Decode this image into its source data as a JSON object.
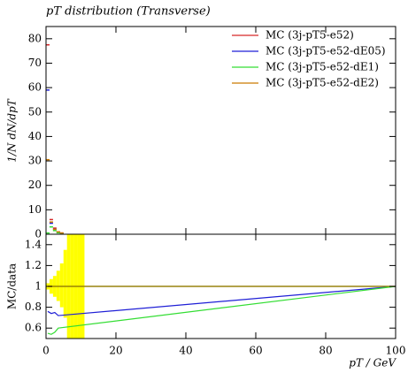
{
  "chart_data": [
    {
      "type": "line",
      "title": "pT distribution (Transverse)",
      "y_label": "1/N dN/dpT",
      "xlim": [
        0,
        100
      ],
      "xticks": [
        0,
        20,
        40,
        60,
        80,
        100
      ],
      "ylim": [
        0,
        85
      ],
      "yticks": [
        0,
        10,
        20,
        30,
        40,
        50,
        60,
        70,
        80
      ],
      "legend": "top-right",
      "series": [
        {
          "name": "MC (3j-pT5-e52)",
          "color": "#d62728",
          "x": [
            0.5,
            1.5,
            2.5,
            3.5,
            4.5
          ],
          "values": [
            77.5,
            6,
            2.5,
            1,
            0.5
          ]
        },
        {
          "name": "MC (3j-pT5-e52-dE05)",
          "color": "#1f1fd6",
          "x": [
            0.5,
            1.5,
            2.5,
            3.5,
            4.5
          ],
          "values": [
            59,
            4.5,
            2,
            0.8,
            0.4
          ]
        },
        {
          "name": "MC (3j-pT5-e52-dE1)",
          "color": "#33dd33",
          "x": [
            0.5,
            1.5,
            2.5,
            3.5,
            4.5
          ],
          "values": [
            0.5,
            3,
            1.5,
            0.6,
            0.3
          ]
        },
        {
          "name": "MC (3j-pT5-e52-dE2)",
          "color": "#cc7a00",
          "x": [
            0.5,
            1.5,
            2.5,
            3.5,
            4.5
          ],
          "values": [
            30.5,
            5,
            2,
            1,
            0.5
          ]
        }
      ]
    },
    {
      "type": "ratio",
      "y_label": "MC/data",
      "x_label": "pT / GeV",
      "xlim": [
        0,
        100
      ],
      "xticks": [
        0,
        20,
        40,
        60,
        80,
        100
      ],
      "ylim": [
        0.5,
        1.5
      ],
      "yticks": [
        0.6,
        0.8,
        1,
        1.2,
        1.4
      ],
      "band": {
        "color": "#ffff00",
        "bins": [
          0,
          1,
          2,
          3,
          4,
          5,
          6,
          7,
          8,
          9,
          10,
          11
        ],
        "lower": [
          0.97,
          0.93,
          0.9,
          0.86,
          0.8,
          0.7,
          0.5,
          0.5,
          0.5,
          0.5,
          0.5
        ],
        "upper": [
          1.03,
          1.07,
          1.1,
          1.15,
          1.22,
          1.35,
          1.5,
          1.5,
          1.5,
          1.5,
          1.5
        ]
      },
      "series": [
        {
          "name": "MC (3j-pT5-e52)",
          "color": "#d62728",
          "x": [
            0.5,
            100
          ],
          "values": [
            1,
            1
          ]
        },
        {
          "name": "MC (3j-pT5-e52-dE05)",
          "color": "#1f1fd6",
          "x": [
            0.5,
            1.5,
            2.5,
            3.5,
            100
          ],
          "values": [
            0.76,
            0.74,
            0.75,
            0.72,
            1
          ]
        },
        {
          "name": "MC (3j-pT5-e52-dE1)",
          "color": "#33dd33",
          "x": [
            0.5,
            1.5,
            2.5,
            3.5,
            100
          ],
          "values": [
            0.55,
            0.54,
            0.56,
            0.6,
            1
          ]
        },
        {
          "name": "MC (3j-pT5-e52-dE2)",
          "color": "#8a8a00",
          "x": [
            0.5,
            100
          ],
          "values": [
            1,
            1
          ]
        }
      ]
    }
  ]
}
